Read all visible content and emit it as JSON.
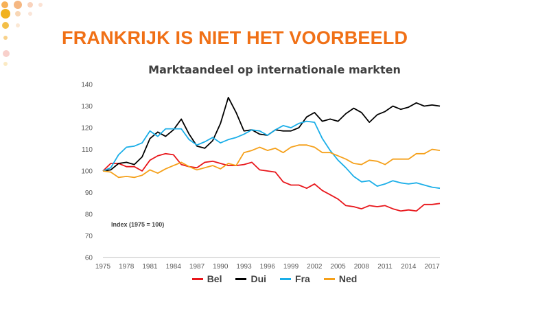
{
  "slide": {
    "title": "FRANKRIJK IS NIET HET VOORBEELD",
    "colors": {
      "title": "#f07016"
    }
  },
  "chart_data": {
    "type": "line",
    "title": "Marktaandeel op internationale markten",
    "annotation": "Index (1975 = 100)",
    "xlabel": "",
    "ylabel": "",
    "ylim": [
      60,
      140
    ],
    "yticks": [
      60,
      70,
      80,
      90,
      100,
      110,
      120,
      130,
      140
    ],
    "xlim": [
      1975,
      2018
    ],
    "xticks": [
      1975,
      1978,
      1981,
      1984,
      1987,
      1990,
      1993,
      1996,
      1999,
      2002,
      2005,
      2008,
      2011,
      2014,
      2017
    ],
    "grid": false,
    "legend": "bottom",
    "x": [
      1975,
      1976,
      1977,
      1978,
      1979,
      1980,
      1981,
      1982,
      1983,
      1984,
      1985,
      1986,
      1987,
      1988,
      1989,
      1990,
      1991,
      1992,
      1993,
      1994,
      1995,
      1996,
      1997,
      1998,
      1999,
      2000,
      2001,
      2002,
      2003,
      2004,
      2005,
      2006,
      2007,
      2008,
      2009,
      2010,
      2011,
      2012,
      2013,
      2014,
      2015,
      2016,
      2017,
      2018
    ],
    "series": [
      {
        "name": "Bel",
        "color": "#e8161b",
        "values": [
          100,
          103.5,
          103.5,
          102,
          102,
          100,
          105,
          107,
          108,
          107.5,
          103,
          102,
          101.5,
          104,
          104.5,
          103.5,
          102.5,
          102.5,
          103,
          104,
          100.5,
          100,
          99.5,
          95,
          93.5,
          93.5,
          92,
          94,
          91,
          89,
          87,
          84,
          83.5,
          82.5,
          84,
          83.5,
          84,
          82.5,
          81.5,
          82,
          81.5,
          84.5,
          84.5,
          85
        ]
      },
      {
        "name": "Dui",
        "color": "#000000",
        "values": [
          100,
          100.5,
          103.5,
          104,
          103,
          106.5,
          115,
          118,
          116,
          119,
          124,
          117,
          111.5,
          110.5,
          114,
          122,
          134,
          127,
          118.5,
          119,
          117,
          116.5,
          119,
          118.5,
          118.5,
          120,
          125,
          127,
          123,
          124,
          123,
          126.5,
          129,
          127,
          122.5,
          126,
          127.5,
          130,
          128.5,
          129.5,
          131.5,
          130,
          130.5,
          130
        ]
      },
      {
        "name": "Fra",
        "color": "#1aaee8",
        "values": [
          100,
          101.5,
          107.5,
          111,
          111.5,
          113,
          118.5,
          116,
          119.5,
          119.5,
          119.5,
          114.5,
          112,
          113.5,
          115.5,
          113,
          114.5,
          115.5,
          117,
          119,
          118.5,
          116.5,
          119,
          121,
          120,
          122,
          123,
          122.5,
          115,
          109.5,
          105,
          101.5,
          97.5,
          95,
          95.5,
          93,
          94,
          95.5,
          94.5,
          94,
          94.5,
          93.5,
          92.5,
          92
        ]
      },
      {
        "name": "Ned",
        "color": "#f5a01a",
        "values": [
          100,
          99.5,
          97,
          97.5,
          97,
          98,
          100.5,
          99,
          101,
          102.5,
          104,
          102,
          100.5,
          101.5,
          102.5,
          101,
          103.5,
          102.5,
          108.5,
          109.5,
          111,
          109.5,
          110.5,
          108.5,
          111,
          112,
          112,
          111,
          108.5,
          108.5,
          107,
          105.5,
          103.5,
          103,
          105,
          104.5,
          103,
          105.5,
          105.5,
          105.5,
          108,
          108,
          110,
          109.5
        ]
      }
    ]
  }
}
